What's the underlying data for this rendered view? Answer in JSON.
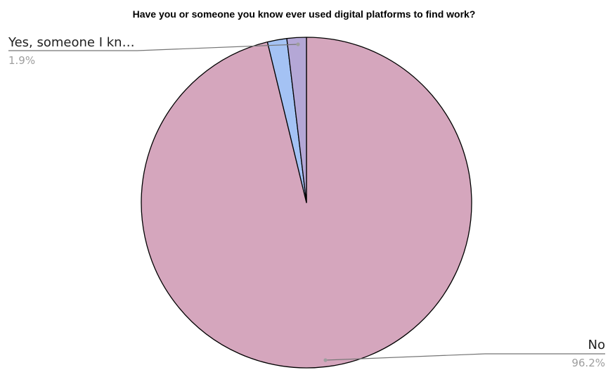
{
  "chart_data": {
    "type": "pie",
    "title": "Have you or someone you know ever used digital platforms to find work?",
    "slices": [
      {
        "label": "No",
        "value": 96.2,
        "display_pct": "96.2%",
        "color": "#d5a6bd",
        "callout": true
      },
      {
        "label": "",
        "value": 1.9,
        "display_pct": "",
        "color": "#a4c2f4",
        "callout": false
      },
      {
        "label": "Yes, someone I kn…",
        "value": 1.9,
        "display_pct": "1.9%",
        "color": "#b4a7d6",
        "callout": true
      }
    ],
    "start_angle_deg": 0,
    "direction": "clockwise",
    "stroke_color": "#000000",
    "leader_color": "#757575"
  }
}
